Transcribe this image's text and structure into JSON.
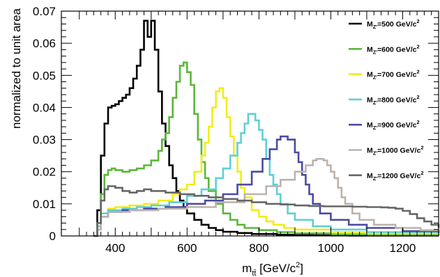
{
  "chart_data": {
    "type": "line",
    "style": "step-histogram",
    "xlabel": "m_tt̄ [GeV/c²]",
    "ylabel": "normalized to unit area",
    "xlim": [
      250,
      1300
    ],
    "ylim": [
      0,
      0.07
    ],
    "x_ticks": [
      400,
      600,
      800,
      1000,
      1200
    ],
    "x_tick_labels": [
      "400",
      "600",
      "800",
      "1000",
      "1200"
    ],
    "y_ticks": [
      0,
      0.01,
      0.02,
      0.03,
      0.04,
      0.05,
      0.06,
      0.07
    ],
    "y_tick_labels": [
      "0",
      "0.01",
      "0.02",
      "0.03",
      "0.04",
      "0.05",
      "0.06",
      "0.07"
    ],
    "grid": false,
    "legend_placement": "right",
    "series": [
      {
        "name": "M_Z'=500 GeV/c²",
        "legend_main": "M",
        "legend_sub": "Z'",
        "legend_rest": "=500 GeV/c",
        "legend_sup": "2",
        "color": "#000000",
        "points": [
          [
            340,
            0
          ],
          [
            350,
            0.008
          ],
          [
            360,
            0.025
          ],
          [
            370,
            0.035
          ],
          [
            380,
            0.04
          ],
          [
            390,
            0.0405
          ],
          [
            400,
            0.041
          ],
          [
            410,
            0.042
          ],
          [
            420,
            0.043
          ],
          [
            430,
            0.044
          ],
          [
            440,
            0.046
          ],
          [
            450,
            0.049
          ],
          [
            460,
            0.053
          ],
          [
            470,
            0.058
          ],
          [
            480,
            0.067
          ],
          [
            490,
            0.062
          ],
          [
            500,
            0.067
          ],
          [
            510,
            0.058
          ],
          [
            520,
            0.045
          ],
          [
            530,
            0.035
          ],
          [
            540,
            0.028
          ],
          [
            550,
            0.022
          ],
          [
            560,
            0.018
          ],
          [
            570,
            0.014
          ],
          [
            580,
            0.011
          ],
          [
            590,
            0.009
          ],
          [
            600,
            0.007
          ],
          [
            620,
            0.005
          ],
          [
            640,
            0.0035
          ],
          [
            660,
            0.0025
          ],
          [
            680,
            0.0018
          ],
          [
            700,
            0.0013
          ],
          [
            740,
            0.0009
          ],
          [
            780,
            0.0006
          ],
          [
            850,
            0.0004
          ],
          [
            950,
            0.0002
          ],
          [
            1050,
            0.0001
          ],
          [
            1300,
            0.0001
          ]
        ]
      },
      {
        "name": "M_Z'=600 GeV/c²",
        "legend_main": "M",
        "legend_sub": "Z'",
        "legend_rest": "=600 GeV/c",
        "legend_sup": "2",
        "color": "#5ab73b",
        "points": [
          [
            340,
            0
          ],
          [
            350,
            0.004
          ],
          [
            360,
            0.013
          ],
          [
            370,
            0.019
          ],
          [
            380,
            0.0205
          ],
          [
            390,
            0.021
          ],
          [
            400,
            0.0205
          ],
          [
            420,
            0.02
          ],
          [
            440,
            0.0205
          ],
          [
            460,
            0.021
          ],
          [
            480,
            0.022
          ],
          [
            500,
            0.0235
          ],
          [
            520,
            0.0265
          ],
          [
            530,
            0.03
          ],
          [
            540,
            0.032
          ],
          [
            550,
            0.037
          ],
          [
            560,
            0.043
          ],
          [
            570,
            0.048
          ],
          [
            580,
            0.053
          ],
          [
            590,
            0.054
          ],
          [
            600,
            0.051
          ],
          [
            610,
            0.047
          ],
          [
            620,
            0.038
          ],
          [
            630,
            0.03
          ],
          [
            640,
            0.023
          ],
          [
            650,
            0.018
          ],
          [
            660,
            0.014
          ],
          [
            680,
            0.01
          ],
          [
            700,
            0.007
          ],
          [
            720,
            0.005
          ],
          [
            740,
            0.0035
          ],
          [
            760,
            0.0025
          ],
          [
            800,
            0.0018
          ],
          [
            850,
            0.0012
          ],
          [
            900,
            0.0008
          ],
          [
            1000,
            0.0005
          ],
          [
            1100,
            0.0003
          ],
          [
            1300,
            0.0002
          ]
        ]
      },
      {
        "name": "M_Z'=700 GeV/c²",
        "legend_main": "M",
        "legend_sub": "Z'",
        "legend_rest": "=700 GeV/c",
        "legend_sup": "2",
        "color": "#f2ec1c",
        "points": [
          [
            340,
            0
          ],
          [
            350,
            0.003
          ],
          [
            360,
            0.007
          ],
          [
            380,
            0.0085
          ],
          [
            400,
            0.009
          ],
          [
            440,
            0.0095
          ],
          [
            480,
            0.01
          ],
          [
            520,
            0.011
          ],
          [
            560,
            0.013
          ],
          [
            580,
            0.0145
          ],
          [
            600,
            0.016
          ],
          [
            620,
            0.02
          ],
          [
            640,
            0.025
          ],
          [
            650,
            0.029
          ],
          [
            660,
            0.034
          ],
          [
            670,
            0.04
          ],
          [
            680,
            0.045
          ],
          [
            690,
            0.046
          ],
          [
            700,
            0.043
          ],
          [
            710,
            0.037
          ],
          [
            720,
            0.031
          ],
          [
            730,
            0.025
          ],
          [
            740,
            0.02
          ],
          [
            750,
            0.015
          ],
          [
            760,
            0.012
          ],
          [
            780,
            0.008
          ],
          [
            800,
            0.006
          ],
          [
            820,
            0.0045
          ],
          [
            840,
            0.0035
          ],
          [
            870,
            0.0025
          ],
          [
            900,
            0.002
          ],
          [
            1000,
            0.0012
          ],
          [
            1100,
            0.0008
          ],
          [
            1300,
            0.0005
          ]
        ]
      },
      {
        "name": "M_Z'=800 GeV/c²",
        "legend_main": "M",
        "legend_sub": "Z'",
        "legend_rest": "=800 GeV/c",
        "legend_sup": "2",
        "color": "#5fcfd6",
        "points": [
          [
            340,
            0
          ],
          [
            350,
            0.003
          ],
          [
            360,
            0.007
          ],
          [
            380,
            0.008
          ],
          [
            420,
            0.0085
          ],
          [
            460,
            0.009
          ],
          [
            500,
            0.0095
          ],
          [
            550,
            0.0105
          ],
          [
            600,
            0.0125
          ],
          [
            640,
            0.0145
          ],
          [
            680,
            0.018
          ],
          [
            700,
            0.021
          ],
          [
            720,
            0.025
          ],
          [
            740,
            0.029
          ],
          [
            750,
            0.032
          ],
          [
            760,
            0.035
          ],
          [
            770,
            0.038
          ],
          [
            790,
            0.036
          ],
          [
            800,
            0.033
          ],
          [
            810,
            0.03
          ],
          [
            820,
            0.024
          ],
          [
            830,
            0.019
          ],
          [
            840,
            0.016
          ],
          [
            850,
            0.013
          ],
          [
            860,
            0.01
          ],
          [
            880,
            0.007
          ],
          [
            900,
            0.005
          ],
          [
            950,
            0.003
          ],
          [
            1000,
            0.002
          ],
          [
            1100,
            0.0012
          ],
          [
            1300,
            0.0008
          ]
        ]
      },
      {
        "name": "M_Z'=900 GeV/c²",
        "legend_main": "M",
        "legend_sub": "Z'",
        "legend_rest": "=900 GeV/c",
        "legend_sup": "2",
        "color": "#4a4aa6",
        "points": [
          [
            340,
            0
          ],
          [
            350,
            0.002
          ],
          [
            360,
            0.006
          ],
          [
            380,
            0.0075
          ],
          [
            420,
            0.008
          ],
          [
            480,
            0.0085
          ],
          [
            540,
            0.009
          ],
          [
            600,
            0.01
          ],
          [
            650,
            0.011
          ],
          [
            700,
            0.013
          ],
          [
            740,
            0.016
          ],
          [
            780,
            0.02
          ],
          [
            810,
            0.024
          ],
          [
            830,
            0.027
          ],
          [
            850,
            0.03
          ],
          [
            860,
            0.031
          ],
          [
            880,
            0.03
          ],
          [
            900,
            0.026
          ],
          [
            910,
            0.023
          ],
          [
            920,
            0.019
          ],
          [
            930,
            0.016
          ],
          [
            940,
            0.013
          ],
          [
            950,
            0.01
          ],
          [
            970,
            0.007
          ],
          [
            1000,
            0.005
          ],
          [
            1050,
            0.0035
          ],
          [
            1100,
            0.0025
          ],
          [
            1200,
            0.0015
          ],
          [
            1300,
            0.001
          ]
        ]
      },
      {
        "name": "M_Z'=1000 GeV/c²",
        "legend_main": "M",
        "legend_sub": "Z'",
        "legend_rest": "=1000 GeV/c",
        "legend_sup": "2",
        "color": "#bcb3ac",
        "points": [
          [
            340,
            0
          ],
          [
            350,
            0.002
          ],
          [
            360,
            0.006
          ],
          [
            380,
            0.0075
          ],
          [
            440,
            0.008
          ],
          [
            520,
            0.0085
          ],
          [
            600,
            0.009
          ],
          [
            680,
            0.0105
          ],
          [
            760,
            0.013
          ],
          [
            820,
            0.0155
          ],
          [
            860,
            0.0175
          ],
          [
            900,
            0.02
          ],
          [
            930,
            0.022
          ],
          [
            950,
            0.0235
          ],
          [
            960,
            0.024
          ],
          [
            980,
            0.0235
          ],
          [
            990,
            0.022
          ],
          [
            1000,
            0.02
          ],
          [
            1010,
            0.018
          ],
          [
            1020,
            0.015
          ],
          [
            1030,
            0.012
          ],
          [
            1040,
            0.01
          ],
          [
            1060,
            0.007
          ],
          [
            1080,
            0.005
          ],
          [
            1120,
            0.0035
          ],
          [
            1180,
            0.0025
          ],
          [
            1250,
            0.0018
          ],
          [
            1300,
            0.0015
          ]
        ]
      },
      {
        "name": "M_Z'=1200 GeV/c²",
        "legend_main": "M",
        "legend_sub": "Z'",
        "legend_rest": "=1200 GeV/c",
        "legend_sup": "2",
        "color": "#666666",
        "points": [
          [
            340,
            0
          ],
          [
            350,
            0.004
          ],
          [
            360,
            0.011
          ],
          [
            370,
            0.0145
          ],
          [
            380,
            0.0155
          ],
          [
            400,
            0.015
          ],
          [
            420,
            0.014
          ],
          [
            440,
            0.0135
          ],
          [
            460,
            0.014
          ],
          [
            480,
            0.0145
          ],
          [
            500,
            0.014
          ],
          [
            540,
            0.0135
          ],
          [
            580,
            0.013
          ],
          [
            620,
            0.0125
          ],
          [
            660,
            0.012
          ],
          [
            700,
            0.0115
          ],
          [
            740,
            0.011
          ],
          [
            780,
            0.0105
          ],
          [
            820,
            0.01
          ],
          [
            860,
            0.0098
          ],
          [
            900,
            0.0095
          ],
          [
            940,
            0.0093
          ],
          [
            980,
            0.0092
          ],
          [
            1020,
            0.0092
          ],
          [
            1060,
            0.0091
          ],
          [
            1100,
            0.009
          ],
          [
            1140,
            0.0089
          ],
          [
            1160,
            0.0088
          ],
          [
            1180,
            0.0085
          ],
          [
            1200,
            0.0078
          ],
          [
            1220,
            0.0068
          ],
          [
            1240,
            0.0055
          ],
          [
            1260,
            0.0045
          ],
          [
            1280,
            0.0035
          ],
          [
            1300,
            0.0025
          ]
        ]
      }
    ]
  }
}
